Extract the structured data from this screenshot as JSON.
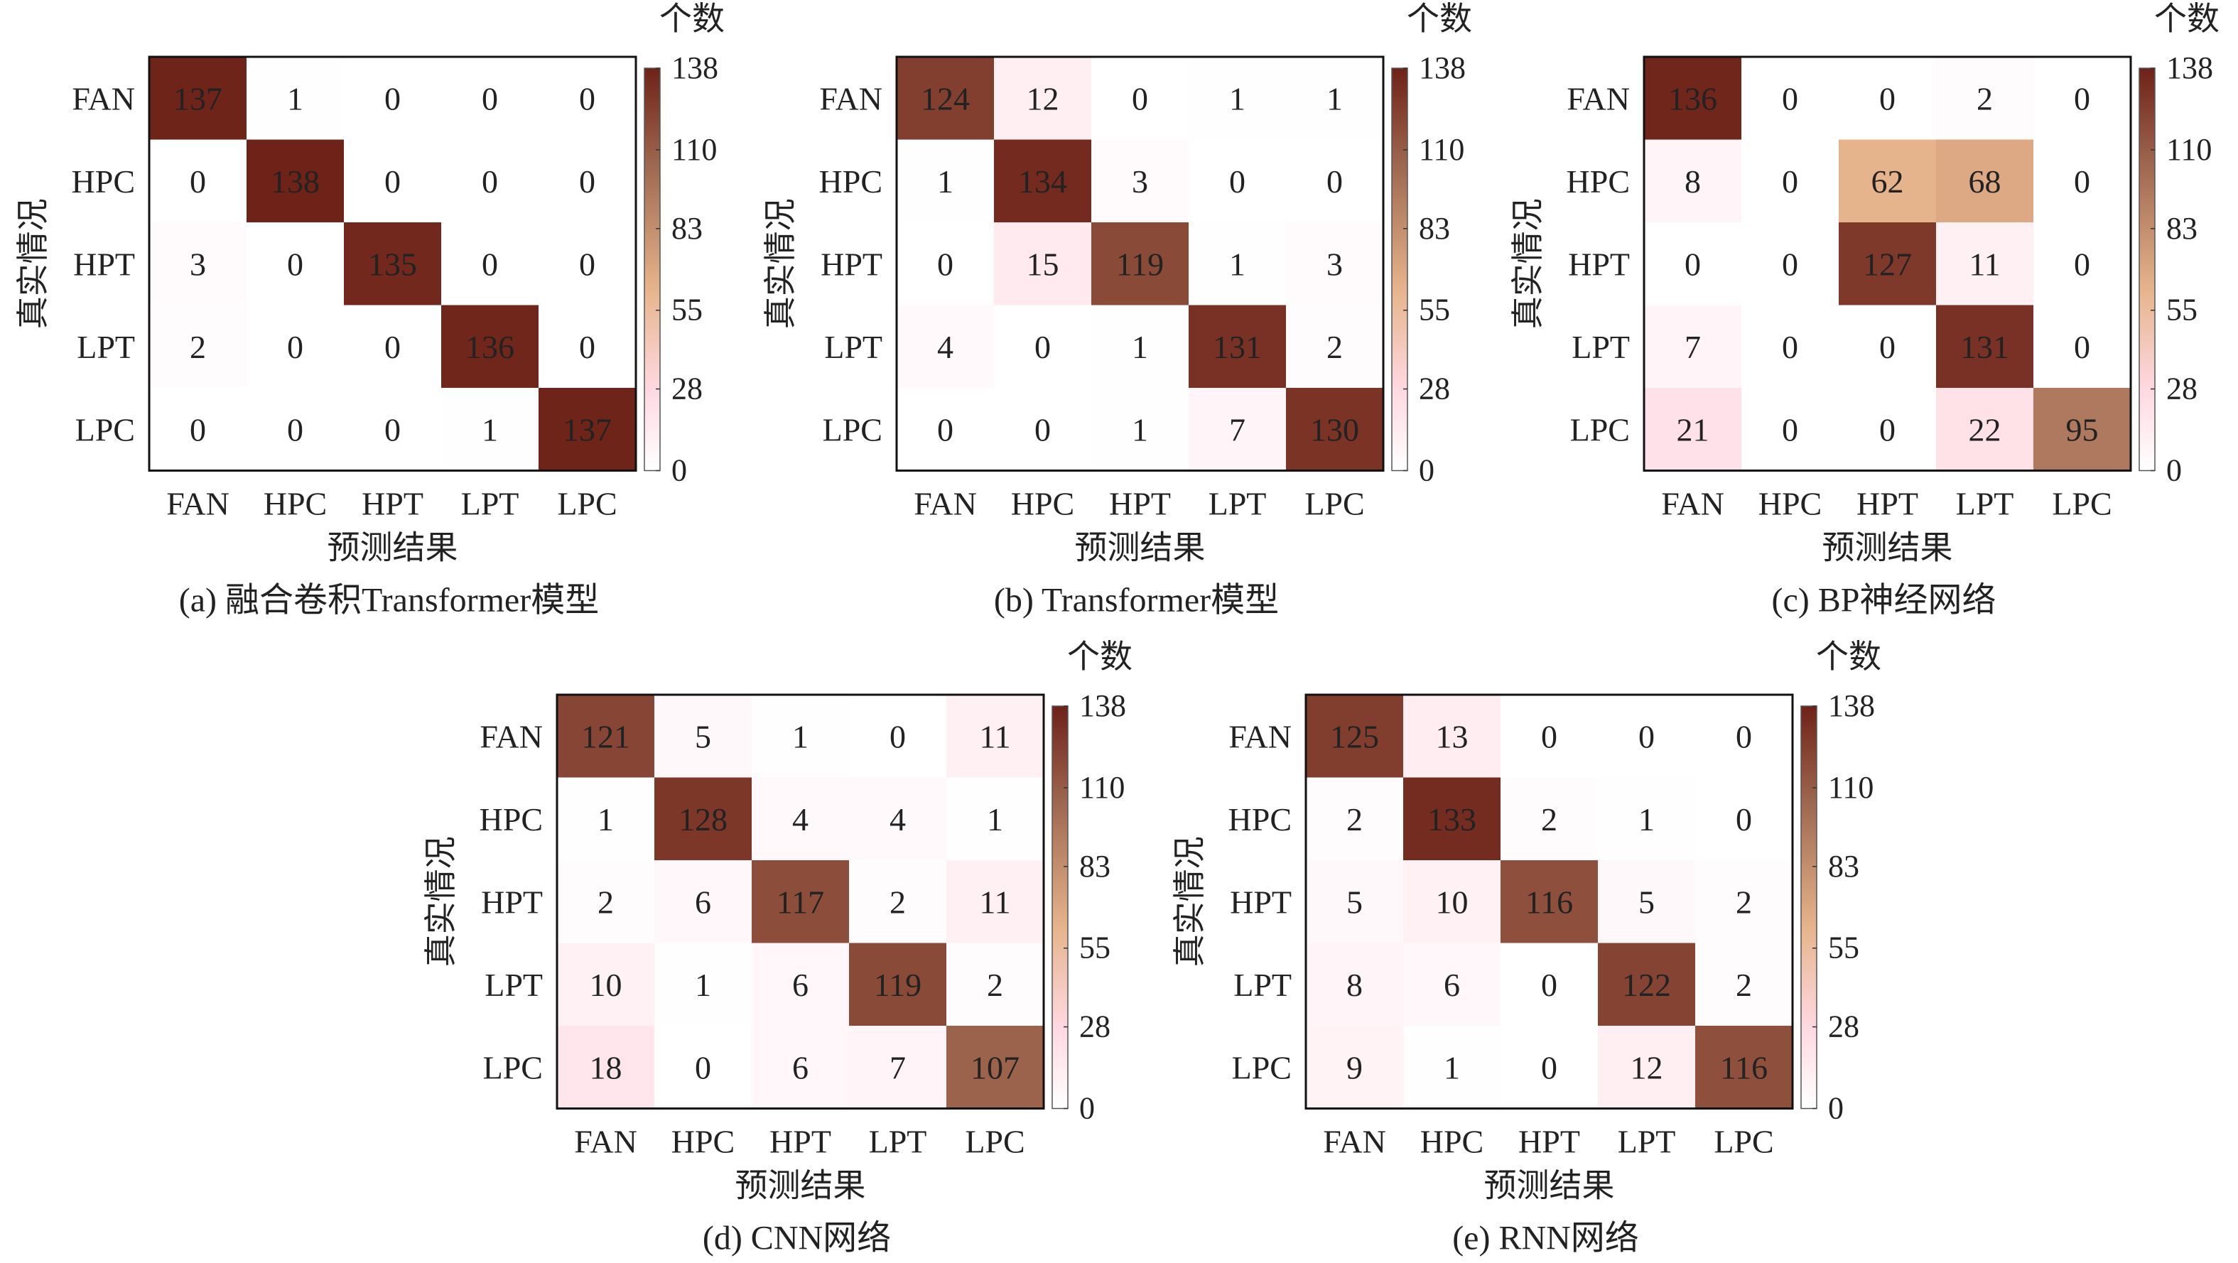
{
  "shared": {
    "categories": [
      "FAN",
      "HPC",
      "HPT",
      "LPT",
      "LPC"
    ],
    "xlabel": "预测结果",
    "ylabel": "真实情况",
    "colorbar_label": "个数",
    "colorbar_ticks": [
      "138",
      "110",
      "83",
      "55",
      "28",
      "0"
    ],
    "colorbar_range": [
      0,
      138
    ],
    "colorscale": [
      "#ffffff",
      "#ffd9e2",
      "#e6b48c",
      "#a06a52",
      "#6e2218"
    ]
  },
  "chart_data": [
    {
      "type": "heatmap",
      "caption": "(a) 融合卷积Transformer模型",
      "categories": [
        "FAN",
        "HPC",
        "HPT",
        "LPT",
        "LPC"
      ],
      "xlabel": "预测结果",
      "ylabel": "真实情况",
      "zlim": [
        0,
        138
      ],
      "matrix": [
        [
          137,
          1,
          0,
          0,
          0
        ],
        [
          0,
          138,
          0,
          0,
          0
        ],
        [
          3,
          0,
          135,
          0,
          0
        ],
        [
          2,
          0,
          0,
          136,
          0
        ],
        [
          0,
          0,
          0,
          1,
          137
        ]
      ]
    },
    {
      "type": "heatmap",
      "caption": "(b) Transformer模型",
      "categories": [
        "FAN",
        "HPC",
        "HPT",
        "LPT",
        "LPC"
      ],
      "xlabel": "预测结果",
      "ylabel": "真实情况",
      "zlim": [
        0,
        138
      ],
      "matrix": [
        [
          124,
          12,
          0,
          1,
          1
        ],
        [
          1,
          134,
          3,
          0,
          0
        ],
        [
          0,
          15,
          119,
          1,
          3
        ],
        [
          4,
          0,
          1,
          131,
          2
        ],
        [
          0,
          0,
          1,
          7,
          130
        ]
      ]
    },
    {
      "type": "heatmap",
      "caption": "(c) BP神经网络",
      "categories": [
        "FAN",
        "HPC",
        "HPT",
        "LPT",
        "LPC"
      ],
      "xlabel": "预测结果",
      "ylabel": "真实情况",
      "zlim": [
        0,
        138
      ],
      "matrix": [
        [
          136,
          0,
          0,
          2,
          0
        ],
        [
          8,
          0,
          62,
          68,
          0
        ],
        [
          0,
          0,
          127,
          11,
          0
        ],
        [
          7,
          0,
          0,
          131,
          0
        ],
        [
          21,
          0,
          0,
          22,
          95
        ]
      ]
    },
    {
      "type": "heatmap",
      "caption": "(d) CNN网络",
      "categories": [
        "FAN",
        "HPC",
        "HPT",
        "LPT",
        "LPC"
      ],
      "xlabel": "预测结果",
      "ylabel": "真实情况",
      "zlim": [
        0,
        138
      ],
      "matrix": [
        [
          121,
          5,
          1,
          0,
          11
        ],
        [
          1,
          128,
          4,
          4,
          1
        ],
        [
          2,
          6,
          117,
          2,
          11
        ],
        [
          10,
          1,
          6,
          119,
          2
        ],
        [
          18,
          0,
          6,
          7,
          107
        ]
      ]
    },
    {
      "type": "heatmap",
      "caption": "(e) RNN网络",
      "categories": [
        "FAN",
        "HPC",
        "HPT",
        "LPT",
        "LPC"
      ],
      "xlabel": "预测结果",
      "ylabel": "真实情况",
      "zlim": [
        0,
        138
      ],
      "matrix": [
        [
          125,
          13,
          0,
          0,
          0
        ],
        [
          2,
          133,
          2,
          1,
          0
        ],
        [
          5,
          10,
          116,
          5,
          2
        ],
        [
          8,
          6,
          0,
          122,
          2
        ],
        [
          9,
          1,
          0,
          12,
          116
        ]
      ]
    }
  ]
}
